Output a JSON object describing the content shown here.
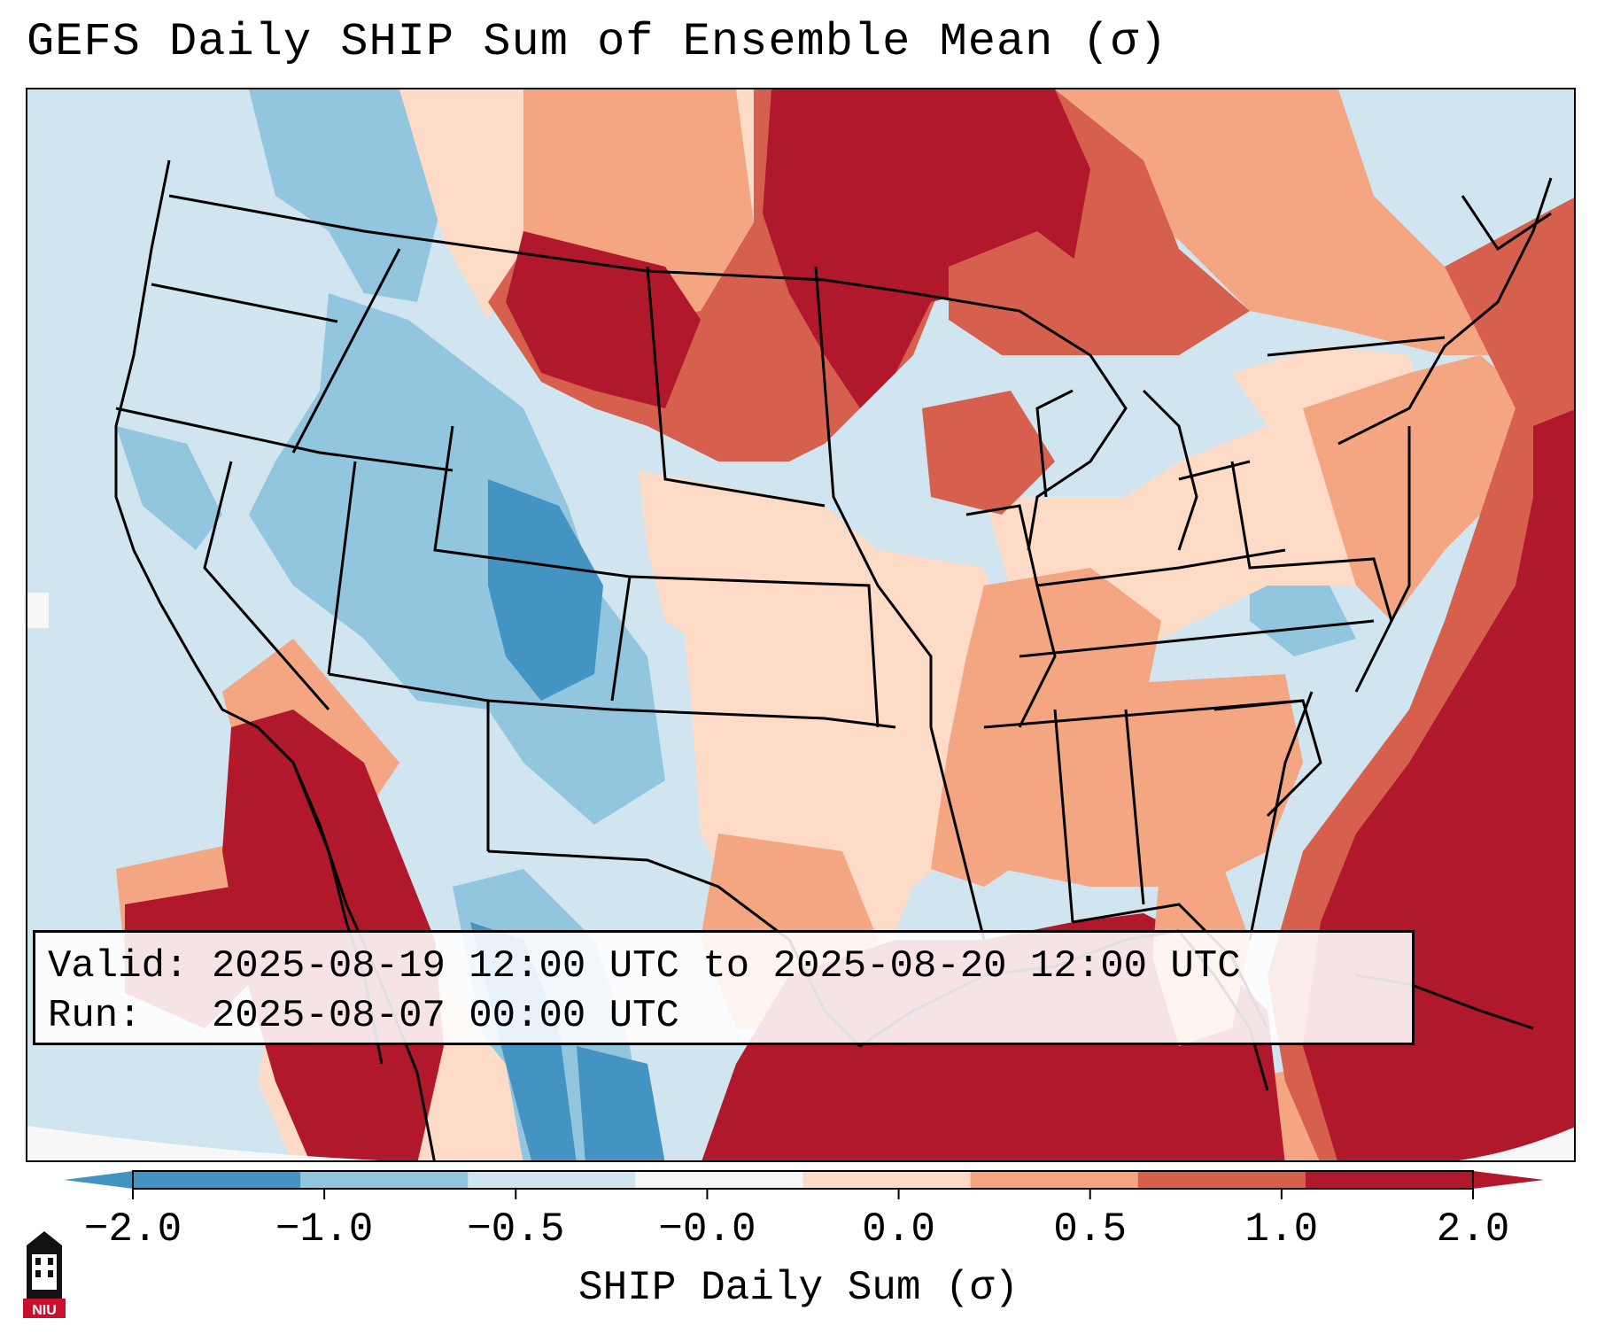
{
  "title": "GEFS Daily SHIP Sum of Ensemble Mean (σ)",
  "info": {
    "valid_line": "Valid: 2025-08-19 12:00 UTC to 2025-08-20 12:00 UTC",
    "run_line": "Run:   2025-08-07 00:00 UTC"
  },
  "colorbar": {
    "label": "SHIP Daily Sum (σ)",
    "ticks": [
      "−2.0",
      "−1.0",
      "−0.5",
      "−0.0",
      "0.0",
      "0.5",
      "1.0",
      "2.0"
    ],
    "colors": [
      "#4393c3",
      "#92c5de",
      "#d1e5f0",
      "#f7f7f7",
      "#fddbc7",
      "#f4a582",
      "#d6604d",
      "#b2182b"
    ],
    "under_color": "#2166ac",
    "over_color": "#67001f"
  },
  "logo": {
    "text": "NIU",
    "icon": "niu-tower-logo-icon",
    "color": "#c8102e"
  },
  "map": {
    "background_color": "#d1e5f0",
    "coastline_color": "#000000"
  }
}
